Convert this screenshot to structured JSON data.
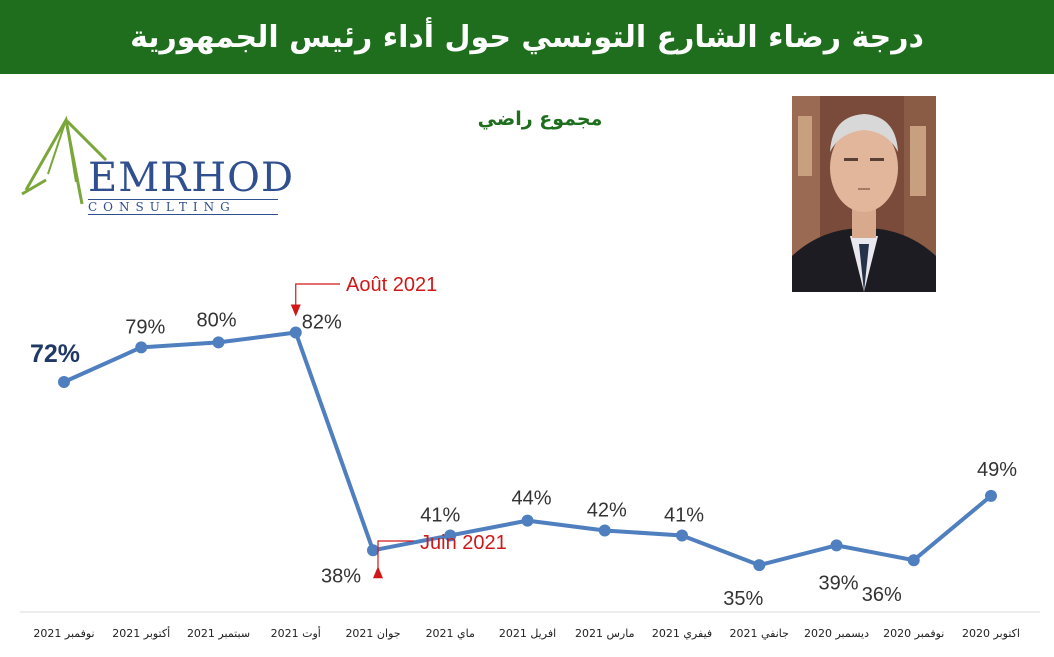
{
  "header": {
    "title": "درجة رضاء الشارع التونسي حول أداء رئيس الجمهورية"
  },
  "subtitle": "مجموع راضي",
  "logo": {
    "name": "EMRHOD",
    "tagline": "CONSULTING"
  },
  "colors": {
    "header_bg": "#1e6e1e",
    "line": "#4f7fbf",
    "annotation": "#d01818"
  },
  "chart_data": {
    "type": "line",
    "title": "مجموع راضي",
    "categories": [
      "نوفمبر 2021",
      "أكتوبر 2021",
      "سبتمبر 2021",
      "أوت 2021",
      "جوان 2021",
      "ماي 2021",
      "افريل 2021",
      "مارس 2021",
      "فيفري 2021",
      "جانفي 2021",
      "ديسمبر 2020",
      "نوفمبر 2020",
      "اكتوبر 2020"
    ],
    "values": [
      72,
      79,
      80,
      82,
      38,
      41,
      44,
      42,
      41,
      35,
      39,
      36,
      49
    ],
    "value_labels": [
      "72%",
      "79%",
      "80%",
      "82%",
      "38%",
      "41%",
      "44%",
      "42%",
      "41%",
      "35%",
      "39%",
      "36%",
      "49%"
    ],
    "annotations": [
      {
        "text": "Août 2021",
        "category": "أوت 2021"
      },
      {
        "text": "Juin 2021",
        "category": "جوان 2021"
      }
    ],
    "grid": false,
    "legend": "none"
  }
}
